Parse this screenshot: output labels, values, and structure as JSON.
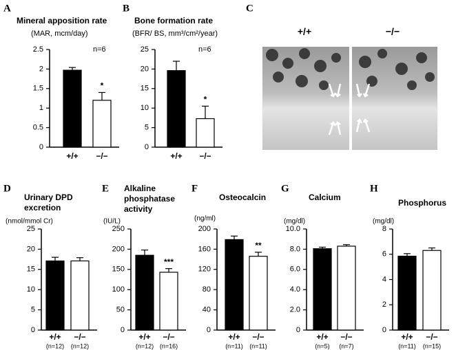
{
  "chart_data": [
    {
      "type": "bar",
      "letter": "A",
      "title": "Mineral apposition rate",
      "subtitle": "(MAR, mcm/day)",
      "note": "n=6",
      "annotation": "*",
      "categories": [
        "+/+",
        "−/−"
      ],
      "values": [
        1.97,
        1.2
      ],
      "errors": [
        0.07,
        0.2
      ],
      "colors": [
        "#000000",
        "#ffffff"
      ],
      "ylim": [
        0,
        2.5
      ],
      "yticks": [
        0,
        0.5,
        1,
        1.5,
        2,
        2.5
      ]
    },
    {
      "type": "bar",
      "letter": "B",
      "title": "Bone formation rate",
      "subtitle": "(BFR/ BS, mm³/cm²/year)",
      "note": "n=6",
      "annotation": "*",
      "categories": [
        "+/+",
        "−/−"
      ],
      "values": [
        19.6,
        7.3
      ],
      "errors": [
        2.4,
        3.2
      ],
      "colors": [
        "#000000",
        "#ffffff"
      ],
      "ylim": [
        0,
        25
      ],
      "yticks": [
        0,
        5,
        10,
        15,
        20,
        25
      ]
    },
    {
      "type": "bar",
      "letter": "D",
      "title_lines": [
        "Urinary DPD",
        "excretion"
      ],
      "unit": "(nmol/mmol Cr)",
      "categories": [
        "+/+",
        "−/−"
      ],
      "n_labels": [
        "(n=12)",
        "(n=12)"
      ],
      "values": [
        17.1,
        17.1
      ],
      "errors": [
        0.9,
        0.8
      ],
      "colors": [
        "#000000",
        "#ffffff"
      ],
      "ylim": [
        0,
        25
      ],
      "yticks": [
        0,
        5,
        10,
        15,
        20,
        25
      ]
    },
    {
      "type": "bar",
      "letter": "E",
      "title_lines": [
        "Alkaline",
        "phosphatase",
        "activity"
      ],
      "unit": "(IU/L)",
      "annotation": "***",
      "categories": [
        "+/+",
        "−/−"
      ],
      "n_labels": [
        "(n=12)",
        "(n=16)"
      ],
      "values": [
        185,
        143
      ],
      "errors": [
        13,
        9
      ],
      "colors": [
        "#000000",
        "#ffffff"
      ],
      "ylim": [
        0,
        250
      ],
      "yticks": [
        0,
        50,
        100,
        150,
        200,
        250
      ]
    },
    {
      "type": "bar",
      "letter": "F",
      "title_lines": [
        "Osteocalcin"
      ],
      "unit": "(ng/ml)",
      "annotation": "**",
      "categories": [
        "+/+",
        "−/−"
      ],
      "n_labels": [
        "(n=11)",
        "(n=11)"
      ],
      "values": [
        179,
        146
      ],
      "errors": [
        7,
        8
      ],
      "colors": [
        "#000000",
        "#ffffff"
      ],
      "ylim": [
        0,
        200
      ],
      "yticks": [
        0,
        40,
        80,
        120,
        160,
        200
      ]
    },
    {
      "type": "bar",
      "letter": "G",
      "title_lines": [
        "Calcium"
      ],
      "unit": "(mg/dl)",
      "categories": [
        "+/+",
        "−/−"
      ],
      "n_labels": [
        "(n=5)",
        "(n=7)"
      ],
      "values": [
        8.05,
        8.3
      ],
      "errors": [
        0.15,
        0.15
      ],
      "colors": [
        "#000000",
        "#ffffff"
      ],
      "ylim": [
        0,
        10
      ],
      "yticks": [
        0,
        {
          "value": 2,
          "label": "2.0"
        },
        {
          "value": 4,
          "label": "4.0"
        },
        {
          "value": 6,
          "label": "6.0"
        },
        {
          "value": 8,
          "label": "8.0"
        },
        {
          "value": 10,
          "label": "10.0"
        }
      ]
    },
    {
      "type": "bar",
      "letter": "H",
      "title_lines": [
        "Phosphorus"
      ],
      "unit": "(mg/dl)",
      "categories": [
        "+/+",
        "−/−"
      ],
      "n_labels": [
        "(n=11)",
        "(n=15)"
      ],
      "values": [
        5.85,
        6.3
      ],
      "errors": [
        0.2,
        0.2
      ],
      "colors": [
        "#000000",
        "#ffffff"
      ],
      "ylim": [
        0,
        8
      ],
      "yticks": [
        0,
        2,
        4,
        6,
        8
      ]
    }
  ],
  "image_panel": {
    "letter": "C",
    "labels": [
      "+/+",
      "−/−"
    ]
  }
}
